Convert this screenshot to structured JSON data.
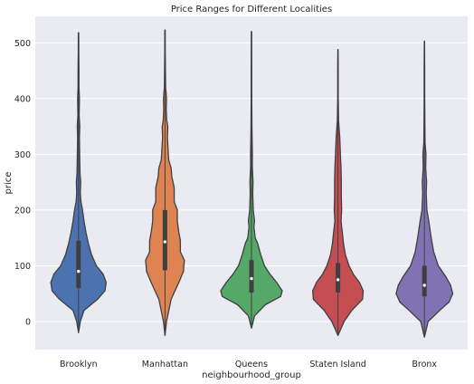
{
  "chart_data": {
    "type": "violin",
    "title": "Price Ranges for Different Localities",
    "xlabel": "neighbourhood_group",
    "ylabel": "price",
    "ylim": [
      -55,
      545
    ],
    "yticks": [
      0,
      100,
      200,
      300,
      400,
      500
    ],
    "grid": true,
    "legend": "none",
    "categories": [
      "Brooklyn",
      "Manhattan",
      "Queens",
      "Staten Island",
      "Bronx"
    ],
    "series": [
      {
        "category": "Brooklyn",
        "color": "#4c72b0",
        "min": -20,
        "max": 518,
        "q1": 60,
        "median": 90,
        "q3": 145,
        "profile": [
          [
            -20,
            0
          ],
          [
            0,
            0.06
          ],
          [
            20,
            0.18
          ],
          [
            40,
            0.62
          ],
          [
            55,
            0.86
          ],
          [
            70,
            0.9
          ],
          [
            85,
            0.8
          ],
          [
            100,
            0.58
          ],
          [
            120,
            0.42
          ],
          [
            140,
            0.32
          ],
          [
            160,
            0.24
          ],
          [
            180,
            0.18
          ],
          [
            200,
            0.13
          ],
          [
            215,
            0.08
          ],
          [
            230,
            0.06
          ],
          [
            250,
            0.07
          ],
          [
            265,
            0.05
          ],
          [
            290,
            0.04
          ],
          [
            330,
            0.03
          ],
          [
            350,
            0.04
          ],
          [
            370,
            0.02
          ],
          [
            400,
            0.03
          ],
          [
            420,
            0.015
          ],
          [
            450,
            0.015
          ],
          [
            480,
            0.01
          ],
          [
            518,
            0.005
          ]
        ]
      },
      {
        "category": "Manhattan",
        "color": "#dd8452",
        "min": -25,
        "max": 523,
        "q1": 92,
        "median": 143,
        "q3": 200,
        "profile": [
          [
            -25,
            0
          ],
          [
            0,
            0.05
          ],
          [
            40,
            0.2
          ],
          [
            70,
            0.45
          ],
          [
            90,
            0.6
          ],
          [
            110,
            0.63
          ],
          [
            125,
            0.5
          ],
          [
            145,
            0.5
          ],
          [
            160,
            0.45
          ],
          [
            180,
            0.4
          ],
          [
            200,
            0.4
          ],
          [
            215,
            0.3
          ],
          [
            240,
            0.3
          ],
          [
            260,
            0.22
          ],
          [
            275,
            0.2
          ],
          [
            290,
            0.12
          ],
          [
            310,
            0.1
          ],
          [
            330,
            0.08
          ],
          [
            350,
            0.09
          ],
          [
            360,
            0.06
          ],
          [
            380,
            0.04
          ],
          [
            400,
            0.05
          ],
          [
            420,
            0.02
          ],
          [
            450,
            0.015
          ],
          [
            480,
            0.01
          ],
          [
            523,
            0.005
          ]
        ]
      },
      {
        "category": "Queens",
        "color": "#55a868",
        "min": -12,
        "max": 520,
        "q1": 52,
        "median": 77,
        "q3": 110,
        "profile": [
          [
            -12,
            0
          ],
          [
            10,
            0.1
          ],
          [
            30,
            0.45
          ],
          [
            45,
            0.95
          ],
          [
            55,
            1.0
          ],
          [
            70,
            0.82
          ],
          [
            85,
            0.6
          ],
          [
            100,
            0.42
          ],
          [
            120,
            0.3
          ],
          [
            140,
            0.2
          ],
          [
            150,
            0.12
          ],
          [
            170,
            0.08
          ],
          [
            180,
            0.1
          ],
          [
            200,
            0.06
          ],
          [
            230,
            0.04
          ],
          [
            250,
            0.05
          ],
          [
            280,
            0.025
          ],
          [
            300,
            0.03
          ],
          [
            350,
            0.015
          ],
          [
            400,
            0.01
          ],
          [
            450,
            0.008
          ],
          [
            520,
            0.005
          ]
        ]
      },
      {
        "category": "Staten Island",
        "color": "#c44e52",
        "min": -25,
        "max": 488,
        "q1": 52,
        "median": 75,
        "q3": 105,
        "profile": [
          [
            -25,
            0
          ],
          [
            0,
            0.2
          ],
          [
            20,
            0.45
          ],
          [
            40,
            0.8
          ],
          [
            55,
            0.82
          ],
          [
            70,
            0.7
          ],
          [
            85,
            0.5
          ],
          [
            100,
            0.36
          ],
          [
            120,
            0.24
          ],
          [
            140,
            0.18
          ],
          [
            160,
            0.14
          ],
          [
            180,
            0.1
          ],
          [
            200,
            0.12
          ],
          [
            225,
            0.11
          ],
          [
            250,
            0.11
          ],
          [
            275,
            0.1
          ],
          [
            300,
            0.08
          ],
          [
            330,
            0.06
          ],
          [
            360,
            0.02
          ],
          [
            400,
            0.01
          ],
          [
            450,
            0.008
          ],
          [
            488,
            0.004
          ]
        ]
      },
      {
        "category": "Bronx",
        "color": "#8172b3",
        "min": -28,
        "max": 503,
        "q1": 45,
        "median": 65,
        "q3": 100,
        "profile": [
          [
            -28,
            0
          ],
          [
            0,
            0.12
          ],
          [
            20,
            0.5
          ],
          [
            35,
            0.8
          ],
          [
            50,
            0.92
          ],
          [
            65,
            0.85
          ],
          [
            80,
            0.7
          ],
          [
            100,
            0.45
          ],
          [
            125,
            0.3
          ],
          [
            150,
            0.22
          ],
          [
            180,
            0.14
          ],
          [
            200,
            0.08
          ],
          [
            230,
            0.06
          ],
          [
            250,
            0.07
          ],
          [
            275,
            0.04
          ],
          [
            300,
            0.05
          ],
          [
            320,
            0.02
          ],
          [
            350,
            0.015
          ],
          [
            400,
            0.01
          ],
          [
            450,
            0.008
          ],
          [
            503,
            0.004
          ]
        ]
      }
    ]
  }
}
